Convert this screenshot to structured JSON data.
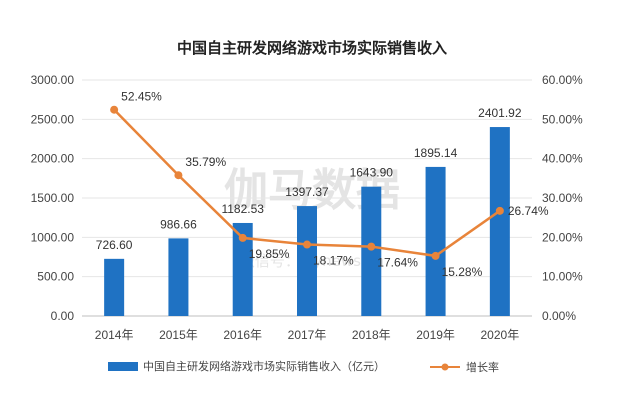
{
  "chart_data": {
    "type": "bar+line",
    "title": "中国自主研发网络游戏市场实际销售收入",
    "categories": [
      "2014年",
      "2015年",
      "2016年",
      "2017年",
      "2018年",
      "2019年",
      "2020年"
    ],
    "series": [
      {
        "name": "中国自主研发网络游戏市场实际销售收入（亿元）",
        "type": "bar",
        "axis": "left",
        "values": [
          726.6,
          986.66,
          1182.53,
          1397.37,
          1643.9,
          1895.14,
          2401.92
        ],
        "labels": [
          "726.60",
          "986.66",
          "1182.53",
          "1397.37",
          "1643.90",
          "1895.14",
          "2401.92"
        ],
        "color": "#1f72c3"
      },
      {
        "name": "增长率",
        "type": "line",
        "axis": "right",
        "values": [
          52.45,
          35.79,
          19.85,
          18.17,
          17.64,
          15.28,
          26.74
        ],
        "labels": [
          "52.45%",
          "35.79%",
          "19.85%",
          "18.17%",
          "17.64%",
          "15.28%",
          "26.74%"
        ],
        "color": "#e8843a"
      }
    ],
    "y_left": {
      "min": 0,
      "max": 3000,
      "ticks": [
        "0.00",
        "500.00",
        "1000.00",
        "1500.00",
        "2000.00",
        "2500.00",
        "3000.00"
      ]
    },
    "y_right": {
      "min": 0,
      "max": 60,
      "ticks": [
        "0.00%",
        "10.00%",
        "20.00%",
        "30.00%",
        "40.00%",
        "50.00%",
        "60.00%"
      ]
    },
    "grid": true,
    "legend_position": "bottom"
  },
  "watermark": {
    "main": "伽马数据",
    "sub": "微信号：joynews-cn"
  }
}
